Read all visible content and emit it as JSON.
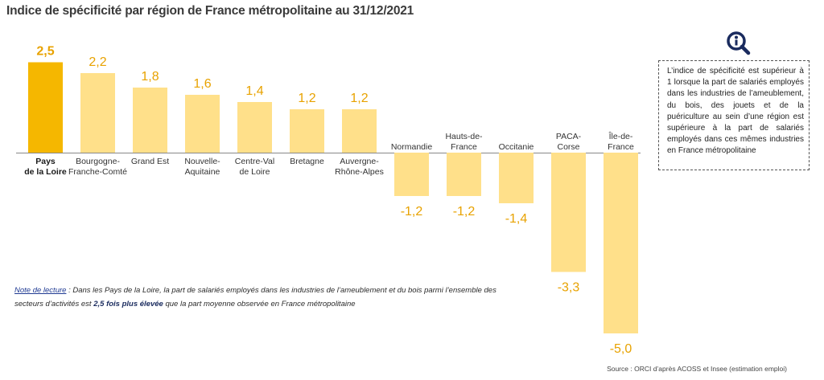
{
  "title": "Indice de spécificité par région de France métropolitaine au 31/12/2021",
  "chart_data": {
    "type": "bar",
    "categories": [
      [
        "Pays",
        "de la Loire"
      ],
      [
        "Bourgogne-",
        "Franche-Comté"
      ],
      [
        "Grand Est"
      ],
      [
        "Nouvelle-",
        "Aquitaine"
      ],
      [
        "Centre-Val",
        "de Loire"
      ],
      [
        "Bretagne"
      ],
      [
        "Auvergne-",
        "Rhône-Alpes"
      ],
      [
        "Normandie"
      ],
      [
        "Hauts-de-",
        "France"
      ],
      [
        "Occitanie"
      ],
      [
        "PACA-",
        "Corse"
      ],
      [
        "Île-de-",
        "France"
      ]
    ],
    "values": [
      2.5,
      2.2,
      1.8,
      1.6,
      1.4,
      1.2,
      1.2,
      -1.2,
      -1.2,
      -1.4,
      -3.3,
      -5.0
    ],
    "value_labels": [
      "2,5",
      "2,2",
      "1,8",
      "1,6",
      "1,4",
      "1,2",
      "1,2",
      "-1,2",
      "-1,2",
      "-1,4",
      "-3,3",
      "-5,0"
    ],
    "highlight_index": 0,
    "colors": {
      "highlight_bar": "#F5B700",
      "bar": "#FFE08A",
      "highlight_label": "#E8A200",
      "label": "#E8A200",
      "axis": "#888888"
    },
    "ylim": [
      -5.0,
      2.5
    ],
    "grid": false,
    "legend": "none"
  },
  "info_box": {
    "icon": "magnifier-info-icon",
    "text": "L’indice de spécificité est supérieur à 1 lorsque la part de salariés employés dans les industries de l’ameublement, du bois, des jouets et de la puériculture au sein d’une région est supérieure à la part de salariés employés dans ces mêmes industries en France métropolitaine"
  },
  "note": {
    "lead": "Note de lecture",
    "part1": " : Dans les Pays de la Loire, la part de salariés employés dans les industries de l’ameublement et du bois parmi l’ensemble des secteurs d’activités est ",
    "strong": "2,5 fois plus élevée",
    "part2": " que la part moyenne observée en France métropolitaine"
  },
  "source": "Source : ORCI d’après ACOSS et Insee (estimation emploi)"
}
